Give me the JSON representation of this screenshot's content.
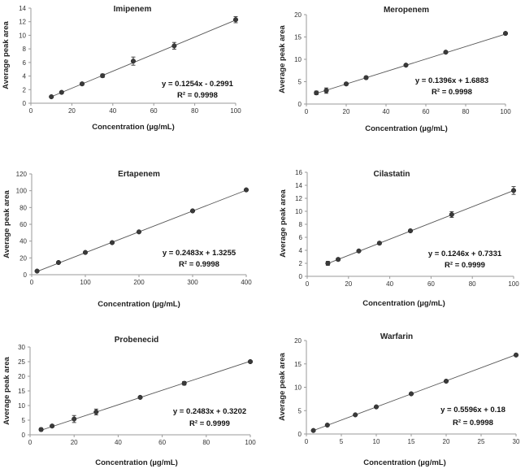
{
  "chart_data": [
    {
      "type": "scatter",
      "title": "Imipenem",
      "xlabel": "Concentration (µg/mL)",
      "ylabel": "Average peak area",
      "xlim": [
        0,
        100
      ],
      "ylim": [
        0,
        14
      ],
      "xticks": [
        "0",
        "20",
        "40",
        "60",
        "80",
        "100"
      ],
      "yticks": [
        "0",
        "2",
        "4",
        "6",
        "8",
        "10",
        "12",
        "14"
      ],
      "x": [
        10,
        15,
        25,
        35,
        50,
        70,
        100
      ],
      "y": [
        0.95,
        1.6,
        2.85,
        4.05,
        6.2,
        8.45,
        12.3
      ],
      "error": [
        0.1,
        0.15,
        0.2,
        0.25,
        0.6,
        0.5,
        0.45
      ],
      "trendline": {
        "slope": 0.1254,
        "intercept": -0.2991
      },
      "equation": "y = 0.1254x - 0.2991",
      "r2": "R² = 0.9998"
    },
    {
      "type": "scatter",
      "title": "Meropenem",
      "xlabel": "Concentration (µg/mL)",
      "ylabel": "Average peak area",
      "xlim": [
        0,
        100
      ],
      "ylim": [
        0,
        20
      ],
      "xticks": [
        "0",
        "20",
        "40",
        "60",
        "80",
        "100"
      ],
      "yticks": [
        "0",
        "5",
        "10",
        "15",
        "20"
      ],
      "x": [
        5,
        10,
        20,
        30,
        50,
        70,
        100
      ],
      "y": [
        2.5,
        3.0,
        4.5,
        5.9,
        8.7,
        11.6,
        15.8
      ],
      "error": [
        0.4,
        0.6,
        0.3,
        0.3,
        0.2,
        0.25,
        0.2
      ],
      "trendline": {
        "slope": 0.1396,
        "intercept": 1.6883
      },
      "equation": "y = 0.1396x + 1.6883",
      "r2": "R² = 0.9998"
    },
    {
      "type": "scatter",
      "title": "Ertapenem",
      "xlabel": "Concentration (µg/mL)",
      "ylabel": "Average peak area",
      "xlim": [
        0,
        400
      ],
      "ylim": [
        0,
        120
      ],
      "xticks": [
        "0",
        "100",
        "200",
        "300",
        "400"
      ],
      "yticks": [
        "0",
        "20",
        "40",
        "60",
        "80",
        "100",
        "120"
      ],
      "x": [
        10,
        50,
        100,
        150,
        200,
        300,
        400
      ],
      "y": [
        4.3,
        14.5,
        26.5,
        38.2,
        51.0,
        76.0,
        101.0
      ],
      "error": [
        0.5,
        0.6,
        0.6,
        0.7,
        0.8,
        1.0,
        1.0
      ],
      "trendline": {
        "slope": 0.2483,
        "intercept": 1.3255
      },
      "equation": "y = 0.2483x + 1.3255",
      "r2": "R² = 0.9998"
    },
    {
      "type": "scatter",
      "title": "Cilastatin",
      "xlabel": "Concentration (µg/mL)",
      "ylabel": "Average peak area",
      "xlim": [
        0,
        100
      ],
      "ylim": [
        0,
        16
      ],
      "xticks": [
        "0",
        "20",
        "40",
        "60",
        "80",
        "100"
      ],
      "yticks": [
        "0",
        "2",
        "4",
        "6",
        "8",
        "10",
        "12",
        "14",
        "16"
      ],
      "x": [
        10,
        15,
        25,
        35,
        50,
        70,
        100
      ],
      "y": [
        2.0,
        2.6,
        3.9,
        5.1,
        7.0,
        9.5,
        13.2
      ],
      "error": [
        0.3,
        0.2,
        0.15,
        0.2,
        0.2,
        0.45,
        0.6
      ],
      "trendline": {
        "slope": 0.1246,
        "intercept": 0.7331
      },
      "equation": "y = 0.1246x + 0.7331",
      "r2": "R² = 0.9999"
    },
    {
      "type": "scatter",
      "title": "Probenecid",
      "xlabel": "Concentration (µg/mL)",
      "ylabel": "Average peak area",
      "xlim": [
        0,
        100
      ],
      "ylim": [
        0,
        30
      ],
      "xticks": [
        "0",
        "20",
        "40",
        "60",
        "80",
        "100"
      ],
      "yticks": [
        "0",
        "5",
        "10",
        "15",
        "20",
        "25",
        "30"
      ],
      "x": [
        5,
        10,
        20,
        30,
        50,
        70,
        100
      ],
      "y": [
        1.8,
        3.0,
        5.4,
        7.8,
        12.8,
        17.6,
        25.0
      ],
      "error": [
        0.5,
        0.4,
        1.2,
        1.0,
        0.3,
        0.6,
        0.4
      ],
      "trendline": {
        "slope": 0.2483,
        "intercept": 0.3202
      },
      "equation": "y = 0.2483x + 0.3202",
      "r2": "R² = 0.9999"
    },
    {
      "type": "scatter",
      "title": "Warfarin",
      "xlabel": "Concentration (µg/mL)",
      "ylabel": "Average peak area",
      "xlim": [
        0,
        30
      ],
      "ylim": [
        0,
        20
      ],
      "xticks": [
        "0",
        "5",
        "10",
        "15",
        "20",
        "25",
        "30"
      ],
      "yticks": [
        "0",
        "5",
        "10",
        "15",
        "20"
      ],
      "x": [
        1,
        3,
        7,
        10,
        15,
        20,
        30
      ],
      "y": [
        0.75,
        1.9,
        4.1,
        5.8,
        8.6,
        11.3,
        16.9
      ],
      "error": [
        0.1,
        0.15,
        0.15,
        0.2,
        0.2,
        0.2,
        0.25
      ],
      "trendline": {
        "slope": 0.5596,
        "intercept": 0.18
      },
      "equation": "y = 0.5596x + 0.18",
      "r2": "R² = 0.9998"
    }
  ]
}
